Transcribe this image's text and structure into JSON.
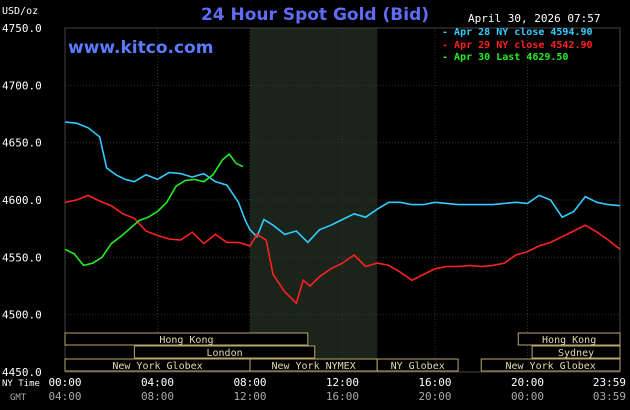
{
  "header": {
    "title": "24 Hour Spot Gold (Bid)",
    "site": "www.kitco.com",
    "datetime": "April 30, 2026 07:57",
    "unit": "USD/oz"
  },
  "legend": [
    {
      "text": "Apr 28 NY close 4594.90",
      "color": "#33ccff"
    },
    {
      "text": "Apr 29 NY close 4542.90",
      "color": "#ff2020"
    },
    {
      "text": "Apr 30 Last 4629.50",
      "color": "#22ee22"
    }
  ],
  "axis_labels": {
    "ny_time": "NY Time",
    "gmt": "GMT"
  },
  "chart_data": {
    "type": "line",
    "ylim": [
      4450,
      4750
    ],
    "y_ticks": [
      "4750.0",
      "4700.0",
      "4650.0",
      "4600.0",
      "4550.0",
      "4500.0",
      "4450.0"
    ],
    "x_ticks_ny": [
      "00:00",
      "04:00",
      "08:00",
      "12:00",
      "16:00",
      "20:00",
      "23:59"
    ],
    "x_ticks_gmt": [
      "04:00",
      "08:00",
      "12:00",
      "16:00",
      "20:00",
      "00:00",
      "03:59"
    ],
    "series": [
      {
        "name": "Apr 28 NY close 4594.90",
        "color": "#33ccff",
        "x": [
          0,
          0.5,
          1,
          1.5,
          1.8,
          2.2,
          2.6,
          3.0,
          3.5,
          4.0,
          4.5,
          5.0,
          5.5,
          6.0,
          6.5,
          7.0,
          7.5,
          7.8,
          8.0,
          8.3,
          8.6,
          9.0,
          9.5,
          10.0,
          10.5,
          11.0,
          11.5,
          12.0,
          12.5,
          13.0,
          13.5,
          14.0,
          14.5,
          15.0,
          15.5,
          16.0,
          17.0,
          18.0,
          18.5,
          19.0,
          19.5,
          20.0,
          20.5,
          21.0,
          21.5,
          22.0,
          22.5,
          23.0,
          23.5,
          24.0
        ],
        "y": [
          4668,
          4667,
          4663,
          4655,
          4628,
          4622,
          4618,
          4616,
          4622,
          4618,
          4624,
          4623,
          4620,
          4623,
          4616,
          4613,
          4598,
          4582,
          4574,
          4568,
          4583,
          4578,
          4570,
          4573,
          4563,
          4574,
          4578,
          4583,
          4588,
          4585,
          4592,
          4598,
          4598,
          4596,
          4596,
          4598,
          4596,
          4596,
          4596,
          4597,
          4598,
          4597,
          4604,
          4600,
          4585,
          4590,
          4603,
          4598,
          4596,
          4595
        ]
      },
      {
        "name": "Apr 29 NY close 4542.90",
        "color": "#ff2020",
        "x": [
          0,
          0.5,
          1,
          1.5,
          2.0,
          2.5,
          3.0,
          3.5,
          4.0,
          4.5,
          5.0,
          5.5,
          6.0,
          6.5,
          7.0,
          7.5,
          8.0,
          8.3,
          8.7,
          9.0,
          9.5,
          10.0,
          10.3,
          10.6,
          11.0,
          11.5,
          12.0,
          12.5,
          13.0,
          13.5,
          14.0,
          14.5,
          15.0,
          15.5,
          16.0,
          16.5,
          17.0,
          17.5,
          18.0,
          18.5,
          19.0,
          19.5,
          20.0,
          20.5,
          21.0,
          21.5,
          22.0,
          22.5,
          23.0,
          23.5,
          24.0
        ],
        "y": [
          4598,
          4600,
          4604,
          4599,
          4595,
          4588,
          4584,
          4573,
          4569,
          4566,
          4565,
          4572,
          4562,
          4570,
          4563,
          4563,
          4560,
          4570,
          4565,
          4535,
          4520,
          4510,
          4530,
          4525,
          4533,
          4540,
          4545,
          4552,
          4542,
          4545,
          4543,
          4537,
          4530,
          4535,
          4540,
          4542,
          4542,
          4543,
          4542,
          4543,
          4545,
          4552,
          4555,
          4560,
          4563,
          4568,
          4573,
          4578,
          4572,
          4565,
          4557
        ]
      },
      {
        "name": "Apr 30 Last 4629.50",
        "color": "#22ee22",
        "x": [
          0,
          0.4,
          0.8,
          1.2,
          1.6,
          2.0,
          2.4,
          2.8,
          3.2,
          3.6,
          4.0,
          4.4,
          4.8,
          5.2,
          5.6,
          6.0,
          6.4,
          6.8,
          7.1,
          7.4,
          7.7
        ],
        "y": [
          4557,
          4553,
          4543,
          4545,
          4550,
          4562,
          4568,
          4575,
          4582,
          4585,
          4590,
          4598,
          4612,
          4617,
          4618,
          4616,
          4622,
          4635,
          4640,
          4632,
          4629
        ]
      }
    ],
    "session_shade": {
      "start": 8.0,
      "end": 13.5
    },
    "sessions": [
      {
        "label": "Hong Kong",
        "start": 0,
        "end": 10.5,
        "row": 1
      },
      {
        "label": "Hong Kong",
        "start": 19.6,
        "end": 24,
        "row": 1
      },
      {
        "label": "London",
        "start": 3.0,
        "end": 10.8,
        "row": 2
      },
      {
        "label": "Sydney",
        "start": 20.2,
        "end": 24,
        "row": 2
      },
      {
        "label": "New York Globex",
        "start": 0,
        "end": 8.0,
        "row": 3
      },
      {
        "label": "New York NYMEX",
        "start": 8.0,
        "end": 13.5,
        "row": 3
      },
      {
        "label": "NY Globex",
        "start": 13.5,
        "end": 17.0,
        "row": 3
      },
      {
        "label": "New York Globex",
        "start": 18.0,
        "end": 24,
        "row": 3
      }
    ]
  }
}
